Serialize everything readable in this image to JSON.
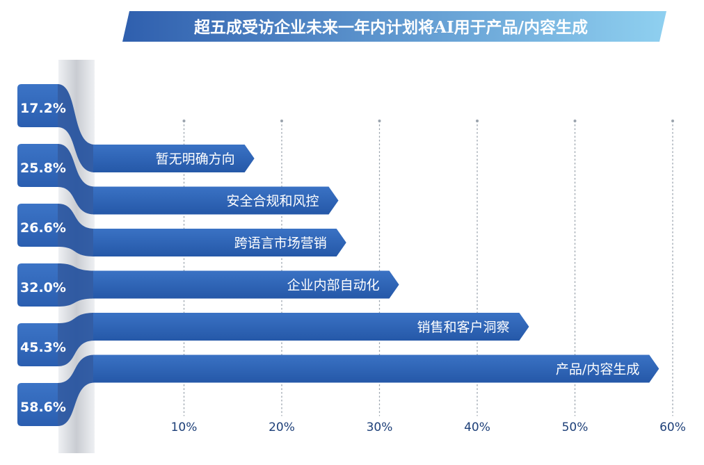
{
  "chart_data": {
    "type": "bar",
    "orientation": "horizontal",
    "title": "超五成受访企业未来一年内计划将AI用于产品/内容生成",
    "categories": [
      "暂无明确方向",
      "安全合规和风控",
      "跨语言市场营销",
      "企业内部自动化",
      "销售和客户洞察",
      "产品/内容生成"
    ],
    "values": [
      17.2,
      25.8,
      26.6,
      32.0,
      45.3,
      58.6
    ],
    "value_labels": [
      "17.2%",
      "25.8%",
      "26.6%",
      "32.0%",
      "45.3%",
      "58.6%"
    ],
    "x_ticks": [
      10,
      20,
      30,
      40,
      50,
      60
    ],
    "x_tick_labels": [
      "10%",
      "20%",
      "30%",
      "40%",
      "50%",
      "60%"
    ],
    "xlim": [
      0,
      60
    ],
    "grid": "vertical dotted",
    "colors": {
      "title_bg_start": "#2f5fae",
      "title_bg_end": "#8fd0f0",
      "title_text": "#ffffff",
      "bar": "#2e64b4",
      "bar_dark": "#1f4e9c",
      "label_box": "#3670c0",
      "stripe": "#d8dbe0",
      "grid": "#9aa3ad",
      "tick_text": "#1d3f78"
    }
  }
}
